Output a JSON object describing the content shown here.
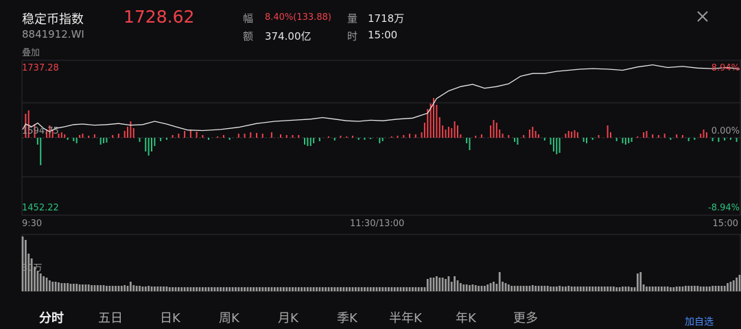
{
  "header": {
    "name": "稳定币指数",
    "code": "8841912.WI",
    "overlay": "叠加",
    "price": "1728.62",
    "change_label": "幅",
    "change_value": "8.40%(133.88)",
    "volume_label": "量",
    "volume_value": "1718万",
    "amount_label": "额",
    "amount_value": "374.00亿",
    "time_label": "时",
    "time_value": "15:00"
  },
  "chart_data": {
    "type": "line",
    "y_max_label": "1737.28",
    "y_mid_label": "1594.75",
    "y_min_label": "1452.22",
    "pct_max_label": "8.94%",
    "pct_mid_label": "0.00%",
    "pct_min_label": "-8.94%",
    "x_start_label": "9:30",
    "x_mid_label": "11:30/13:00",
    "x_end_label": "15:00",
    "volume_axis_label": "30万",
    "ylim": [
      1452.22,
      1737.28
    ],
    "colors": {
      "line": "#e8e8e8",
      "up": "#f0424b",
      "down": "#2ec27e",
      "volume": "#9a9a9a",
      "grid": "#2e2e33"
    },
    "price_points": [
      [
        0,
        1610
      ],
      [
        1,
        1620
      ],
      [
        3,
        1615
      ],
      [
        5,
        1622
      ],
      [
        7,
        1612
      ],
      [
        9,
        1606
      ],
      [
        11,
        1612
      ],
      [
        14,
        1615
      ],
      [
        17,
        1619
      ],
      [
        20,
        1620
      ],
      [
        24,
        1618
      ],
      [
        28,
        1619
      ],
      [
        32,
        1621
      ],
      [
        36,
        1618
      ],
      [
        40,
        1619
      ],
      [
        44,
        1625
      ],
      [
        48,
        1620
      ],
      [
        51,
        1615
      ],
      [
        55,
        1609
      ],
      [
        60,
        1608
      ],
      [
        66,
        1610
      ],
      [
        72,
        1614
      ],
      [
        78,
        1621
      ],
      [
        84,
        1625
      ],
      [
        90,
        1627
      ],
      [
        96,
        1629
      ],
      [
        100,
        1632
      ],
      [
        104,
        1629
      ],
      [
        108,
        1626
      ],
      [
        112,
        1625
      ],
      [
        116,
        1627
      ],
      [
        120,
        1626
      ],
      [
        125,
        1629
      ],
      [
        130,
        1631
      ],
      [
        135,
        1640
      ],
      [
        138,
        1667
      ],
      [
        142,
        1681
      ],
      [
        146,
        1689
      ],
      [
        150,
        1693
      ],
      [
        154,
        1686
      ],
      [
        158,
        1689
      ],
      [
        162,
        1694
      ],
      [
        166,
        1708
      ],
      [
        170,
        1713
      ],
      [
        174,
        1713
      ],
      [
        178,
        1717
      ],
      [
        182,
        1719
      ],
      [
        186,
        1721
      ],
      [
        190,
        1722
      ],
      [
        195,
        1721
      ],
      [
        200,
        1719
      ],
      [
        205,
        1725
      ],
      [
        210,
        1729
      ],
      [
        215,
        1724
      ],
      [
        220,
        1726
      ],
      [
        225,
        1723
      ],
      [
        230,
        1722
      ],
      [
        235,
        1724
      ],
      [
        239,
        1721
      ]
    ],
    "change_bars": [
      [
        1,
        35
      ],
      [
        2,
        40
      ],
      [
        4,
        20
      ],
      [
        5,
        -10
      ],
      [
        6,
        -40
      ],
      [
        8,
        12
      ],
      [
        9,
        18
      ],
      [
        10,
        12
      ],
      [
        12,
        6
      ],
      [
        13,
        8
      ],
      [
        14,
        5
      ],
      [
        15,
        -3
      ],
      [
        17,
        -5
      ],
      [
        18,
        -8
      ],
      [
        19,
        4
      ],
      [
        20,
        6
      ],
      [
        22,
        3
      ],
      [
        24,
        5
      ],
      [
        26,
        -10
      ],
      [
        27,
        -8
      ],
      [
        28,
        -7
      ],
      [
        30,
        4
      ],
      [
        32,
        6
      ],
      [
        34,
        10
      ],
      [
        35,
        16
      ],
      [
        36,
        24
      ],
      [
        37,
        14
      ],
      [
        39,
        -6
      ],
      [
        41,
        -20
      ],
      [
        42,
        -26
      ],
      [
        43,
        -20
      ],
      [
        44,
        -12
      ],
      [
        46,
        -5
      ],
      [
        48,
        -3
      ],
      [
        50,
        4
      ],
      [
        52,
        6
      ],
      [
        54,
        10
      ],
      [
        56,
        12
      ],
      [
        58,
        9
      ],
      [
        60,
        4
      ],
      [
        62,
        -3
      ],
      [
        65,
        2
      ],
      [
        67,
        4
      ],
      [
        69,
        -3
      ],
      [
        72,
        6
      ],
      [
        74,
        6
      ],
      [
        76,
        8
      ],
      [
        78,
        7
      ],
      [
        80,
        6
      ],
      [
        83,
        8
      ],
      [
        86,
        5
      ],
      [
        88,
        4
      ],
      [
        90,
        4
      ],
      [
        92,
        4
      ],
      [
        94,
        -10
      ],
      [
        95,
        -12
      ],
      [
        96,
        -12
      ],
      [
        97,
        -8
      ],
      [
        99,
        -5
      ],
      [
        102,
        2
      ],
      [
        104,
        -4
      ],
      [
        106,
        3
      ],
      [
        108,
        2
      ],
      [
        110,
        3
      ],
      [
        112,
        -3
      ],
      [
        114,
        -3
      ],
      [
        116,
        -2
      ],
      [
        119,
        -8
      ],
      [
        120,
        -5
      ],
      [
        123,
        2
      ],
      [
        125,
        3
      ],
      [
        127,
        4
      ],
      [
        129,
        6
      ],
      [
        131,
        5
      ],
      [
        133,
        8
      ],
      [
        134,
        22
      ],
      [
        135,
        42
      ],
      [
        136,
        50
      ],
      [
        137,
        58
      ],
      [
        138,
        48
      ],
      [
        139,
        30
      ],
      [
        140,
        18
      ],
      [
        141,
        12
      ],
      [
        142,
        16
      ],
      [
        143,
        14
      ],
      [
        144,
        24
      ],
      [
        145,
        18
      ],
      [
        146,
        5
      ],
      [
        148,
        -8
      ],
      [
        149,
        -18
      ],
      [
        151,
        3
      ],
      [
        153,
        5
      ],
      [
        156,
        18
      ],
      [
        157,
        26
      ],
      [
        158,
        22
      ],
      [
        159,
        12
      ],
      [
        160,
        6
      ],
      [
        162,
        4
      ],
      [
        164,
        -6
      ],
      [
        165,
        -10
      ],
      [
        167,
        4
      ],
      [
        169,
        12
      ],
      [
        170,
        16
      ],
      [
        171,
        10
      ],
      [
        172,
        5
      ],
      [
        174,
        -4
      ],
      [
        176,
        -10
      ],
      [
        177,
        -20
      ],
      [
        178,
        -24
      ],
      [
        179,
        -22
      ],
      [
        181,
        6
      ],
      [
        182,
        10
      ],
      [
        183,
        9
      ],
      [
        184,
        11
      ],
      [
        185,
        8
      ],
      [
        187,
        -6
      ],
      [
        188,
        -8
      ],
      [
        190,
        -3
      ],
      [
        192,
        4
      ],
      [
        195,
        18
      ],
      [
        196,
        8
      ],
      [
        198,
        -5
      ],
      [
        200,
        -8
      ],
      [
        201,
        -10
      ],
      [
        202,
        -8
      ],
      [
        203,
        -6
      ],
      [
        205,
        2
      ],
      [
        207,
        8
      ],
      [
        208,
        10
      ],
      [
        210,
        5
      ],
      [
        212,
        4
      ],
      [
        214,
        6
      ],
      [
        216,
        -3
      ],
      [
        218,
        5
      ],
      [
        220,
        4
      ],
      [
        222,
        -5
      ],
      [
        224,
        -3
      ],
      [
        226,
        6
      ],
      [
        227,
        12
      ],
      [
        228,
        8
      ],
      [
        230,
        -5
      ],
      [
        232,
        -6
      ],
      [
        234,
        -4
      ],
      [
        236,
        -3
      ],
      [
        238,
        -6
      ]
    ],
    "volume_bars": [
      [
        0,
        80
      ],
      [
        1,
        75
      ],
      [
        2,
        55
      ],
      [
        3,
        48
      ],
      [
        4,
        36
      ],
      [
        5,
        30
      ],
      [
        6,
        26
      ],
      [
        7,
        22
      ],
      [
        8,
        20
      ],
      [
        9,
        16
      ],
      [
        10,
        14
      ],
      [
        11,
        14
      ],
      [
        12,
        13
      ],
      [
        13,
        12
      ],
      [
        14,
        12
      ],
      [
        15,
        12
      ],
      [
        16,
        11
      ],
      [
        17,
        11
      ],
      [
        18,
        11
      ],
      [
        19,
        10
      ],
      [
        20,
        10
      ],
      [
        21,
        10
      ],
      [
        22,
        10
      ],
      [
        23,
        9
      ],
      [
        24,
        9
      ],
      [
        25,
        9
      ],
      [
        26,
        9
      ],
      [
        27,
        9
      ],
      [
        28,
        8
      ],
      [
        29,
        8
      ],
      [
        30,
        8
      ],
      [
        31,
        8
      ],
      [
        32,
        8
      ],
      [
        33,
        8
      ],
      [
        34,
        9
      ],
      [
        35,
        8
      ],
      [
        36,
        14
      ],
      [
        37,
        9
      ],
      [
        38,
        8
      ],
      [
        39,
        8
      ],
      [
        40,
        7
      ],
      [
        41,
        7
      ],
      [
        42,
        8
      ],
      [
        43,
        7
      ],
      [
        44,
        7
      ],
      [
        45,
        7
      ],
      [
        46,
        7
      ],
      [
        47,
        7
      ],
      [
        48,
        7
      ],
      [
        49,
        6
      ],
      [
        50,
        6
      ],
      [
        51,
        6
      ],
      [
        52,
        6
      ],
      [
        53,
        6
      ],
      [
        54,
        6
      ],
      [
        55,
        6
      ],
      [
        56,
        6
      ],
      [
        57,
        6
      ],
      [
        58,
        6
      ],
      [
        59,
        6
      ],
      [
        60,
        6
      ],
      [
        61,
        6
      ],
      [
        62,
        6
      ],
      [
        63,
        6
      ],
      [
        64,
        6
      ],
      [
        65,
        6
      ],
      [
        66,
        6
      ],
      [
        67,
        6
      ],
      [
        68,
        6
      ],
      [
        69,
        6
      ],
      [
        70,
        6
      ],
      [
        71,
        6
      ],
      [
        72,
        6
      ],
      [
        73,
        6
      ],
      [
        74,
        6
      ],
      [
        75,
        6
      ],
      [
        76,
        6
      ],
      [
        77,
        6
      ],
      [
        78,
        6
      ],
      [
        79,
        6
      ],
      [
        80,
        6
      ],
      [
        81,
        6
      ],
      [
        82,
        6
      ],
      [
        83,
        6
      ],
      [
        84,
        6
      ],
      [
        85,
        6
      ],
      [
        86,
        6
      ],
      [
        87,
        6
      ],
      [
        88,
        6
      ],
      [
        89,
        6
      ],
      [
        90,
        6
      ],
      [
        91,
        6
      ],
      [
        92,
        6
      ],
      [
        93,
        6
      ],
      [
        94,
        6
      ],
      [
        95,
        6
      ],
      [
        96,
        6
      ],
      [
        97,
        6
      ],
      [
        98,
        6
      ],
      [
        99,
        6
      ],
      [
        100,
        6
      ],
      [
        101,
        6
      ],
      [
        102,
        6
      ],
      [
        103,
        6
      ],
      [
        104,
        6
      ],
      [
        105,
        6
      ],
      [
        106,
        6
      ],
      [
        107,
        6
      ],
      [
        108,
        6
      ],
      [
        109,
        6
      ],
      [
        110,
        6
      ],
      [
        111,
        6
      ],
      [
        112,
        6
      ],
      [
        113,
        6
      ],
      [
        114,
        6
      ],
      [
        115,
        6
      ],
      [
        116,
        6
      ],
      [
        117,
        6
      ],
      [
        118,
        6
      ],
      [
        119,
        6
      ],
      [
        120,
        6
      ],
      [
        121,
        6
      ],
      [
        122,
        6
      ],
      [
        123,
        6
      ],
      [
        124,
        6
      ],
      [
        125,
        6
      ],
      [
        126,
        6
      ],
      [
        127,
        6
      ],
      [
        128,
        6
      ],
      [
        129,
        6
      ],
      [
        130,
        6
      ],
      [
        131,
        6
      ],
      [
        132,
        6
      ],
      [
        133,
        6
      ],
      [
        134,
        6
      ],
      [
        135,
        18
      ],
      [
        136,
        20
      ],
      [
        137,
        20
      ],
      [
        138,
        22
      ],
      [
        139,
        20
      ],
      [
        140,
        20
      ],
      [
        141,
        18
      ],
      [
        142,
        22
      ],
      [
        143,
        14
      ],
      [
        144,
        22
      ],
      [
        145,
        16
      ],
      [
        146,
        12
      ],
      [
        147,
        10
      ],
      [
        148,
        10
      ],
      [
        149,
        9
      ],
      [
        150,
        10
      ],
      [
        151,
        9
      ],
      [
        152,
        8
      ],
      [
        153,
        8
      ],
      [
        154,
        8
      ],
      [
        155,
        10
      ],
      [
        156,
        12
      ],
      [
        157,
        14
      ],
      [
        158,
        11
      ],
      [
        159,
        28
      ],
      [
        160,
        14
      ],
      [
        161,
        12
      ],
      [
        162,
        10
      ],
      [
        163,
        8
      ],
      [
        164,
        8
      ],
      [
        165,
        8
      ],
      [
        166,
        8
      ],
      [
        167,
        8
      ],
      [
        168,
        8
      ],
      [
        169,
        8
      ],
      [
        170,
        9
      ],
      [
        171,
        8
      ],
      [
        172,
        8
      ],
      [
        173,
        8
      ],
      [
        174,
        8
      ],
      [
        175,
        8
      ],
      [
        176,
        7
      ],
      [
        177,
        7
      ],
      [
        178,
        7
      ],
      [
        179,
        8
      ],
      [
        180,
        7
      ],
      [
        181,
        7
      ],
      [
        182,
        8
      ],
      [
        183,
        7
      ],
      [
        184,
        7
      ],
      [
        185,
        7
      ],
      [
        186,
        7
      ],
      [
        187,
        7
      ],
      [
        188,
        7
      ],
      [
        189,
        7
      ],
      [
        190,
        7
      ],
      [
        191,
        7
      ],
      [
        192,
        7
      ],
      [
        193,
        7
      ],
      [
        194,
        7
      ],
      [
        195,
        7
      ],
      [
        196,
        7
      ],
      [
        197,
        7
      ],
      [
        198,
        6
      ],
      [
        199,
        6
      ],
      [
        200,
        7
      ],
      [
        201,
        7
      ],
      [
        202,
        7
      ],
      [
        203,
        6
      ],
      [
        204,
        6
      ],
      [
        205,
        26
      ],
      [
        206,
        28
      ],
      [
        207,
        10
      ],
      [
        208,
        7
      ],
      [
        209,
        7
      ],
      [
        210,
        7
      ],
      [
        211,
        7
      ],
      [
        212,
        7
      ],
      [
        213,
        7
      ],
      [
        214,
        7
      ],
      [
        215,
        7
      ],
      [
        216,
        6
      ],
      [
        217,
        6
      ],
      [
        218,
        7
      ],
      [
        219,
        7
      ],
      [
        220,
        7
      ],
      [
        221,
        8
      ],
      [
        222,
        8
      ],
      [
        223,
        8
      ],
      [
        224,
        8
      ],
      [
        225,
        8
      ],
      [
        226,
        7
      ],
      [
        227,
        7
      ],
      [
        228,
        7
      ],
      [
        229,
        7
      ],
      [
        230,
        8
      ],
      [
        231,
        8
      ],
      [
        232,
        8
      ],
      [
        233,
        8
      ],
      [
        234,
        8
      ],
      [
        235,
        12
      ],
      [
        236,
        14
      ],
      [
        237,
        16
      ],
      [
        238,
        20
      ],
      [
        239,
        24
      ]
    ]
  },
  "tabs": [
    {
      "label": "分时",
      "active": true
    },
    {
      "label": "五日",
      "active": false
    },
    {
      "label": "日K",
      "active": false
    },
    {
      "label": "周K",
      "active": false
    },
    {
      "label": "月K",
      "active": false
    },
    {
      "label": "季K",
      "active": false
    },
    {
      "label": "半年K",
      "active": false
    },
    {
      "label": "年K",
      "active": false
    },
    {
      "label": "更多",
      "active": false
    }
  ],
  "add_watchlist_label": "加自选",
  "icons": {
    "close": "close-icon"
  }
}
